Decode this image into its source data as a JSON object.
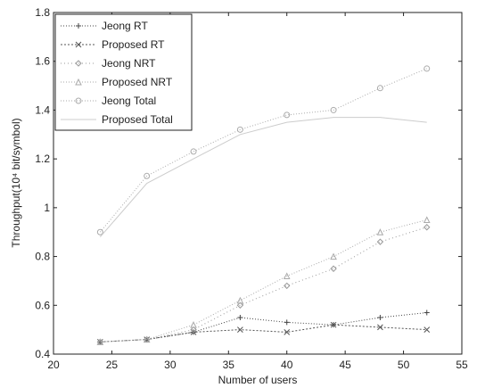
{
  "chart_data": {
    "type": "line",
    "xlabel": "Number of users",
    "ylabel": "Throughput(10⁴ bit/symbol)",
    "xlim": [
      20,
      55
    ],
    "ylim": [
      0.4,
      1.8
    ],
    "xticks": [
      20,
      25,
      30,
      35,
      40,
      45,
      50,
      55
    ],
    "yticks": [
      0.4,
      0.6,
      0.8,
      1.0,
      1.2,
      1.4,
      1.6,
      1.8
    ],
    "xtick_labels": [
      "20",
      "25",
      "30",
      "35",
      "40",
      "45",
      "50",
      "55"
    ],
    "ytick_labels": [
      "0.4",
      "0.6",
      "0.8",
      "1",
      "1.2",
      "1.4",
      "1.6",
      "1.8"
    ],
    "grid": false,
    "legend_position": "top-left",
    "x": [
      24,
      28,
      32,
      36,
      40,
      44,
      48,
      52
    ],
    "series": [
      {
        "name": "Jeong RT",
        "values": [
          0.45,
          0.46,
          0.49,
          0.55,
          0.53,
          0.52,
          0.55,
          0.57
        ],
        "color": "#444444",
        "marker": "plus",
        "dash": "1,2"
      },
      {
        "name": "Proposed RT",
        "values": [
          0.45,
          0.46,
          0.49,
          0.5,
          0.49,
          0.52,
          0.51,
          0.5
        ],
        "color": "#555555",
        "marker": "x",
        "dash": "2,2"
      },
      {
        "name": "Jeong NRT",
        "values": [
          0.45,
          0.46,
          0.5,
          0.6,
          0.68,
          0.75,
          0.86,
          0.92
        ],
        "color": "#999999",
        "marker": "diamond",
        "dash": "1,3"
      },
      {
        "name": "Proposed NRT",
        "values": [
          0.45,
          0.46,
          0.52,
          0.62,
          0.72,
          0.8,
          0.9,
          0.95
        ],
        "color": "#aaaaaa",
        "marker": "tri",
        "dash": "1,2"
      },
      {
        "name": "Jeong Total",
        "values": [
          0.9,
          1.13,
          1.23,
          1.32,
          1.38,
          1.4,
          1.49,
          1.57
        ],
        "color": "#aaaaaa",
        "marker": "circle",
        "dash": "1,2"
      },
      {
        "name": "Proposed Total",
        "values": [
          0.88,
          1.1,
          1.2,
          1.3,
          1.35,
          1.37,
          1.37,
          1.35
        ],
        "color": "#cccccc",
        "marker": "none",
        "dash": ""
      }
    ]
  }
}
